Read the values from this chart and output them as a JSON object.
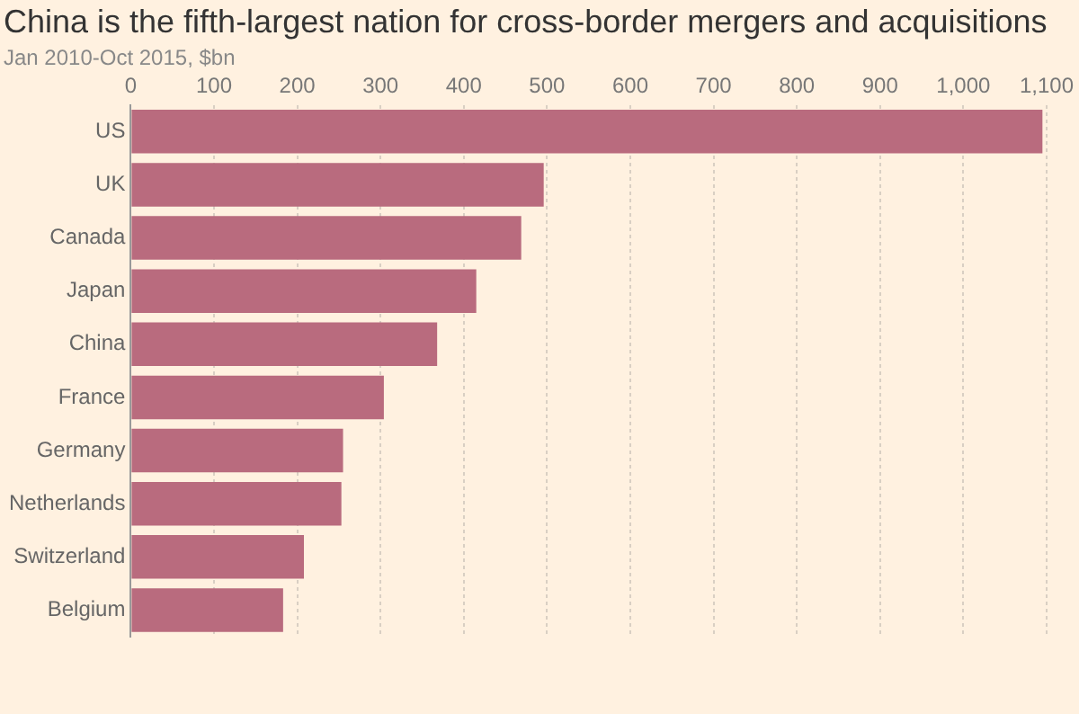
{
  "chart_data": {
    "type": "bar",
    "orientation": "horizontal",
    "title": "China is the fifth-largest nation for cross-border mergers and acquisitions",
    "subtitle": "Jan 2010-Oct 2015, $bn",
    "categories": [
      "US",
      "UK",
      "Canada",
      "Japan",
      "China",
      "France",
      "Germany",
      "Netherlands",
      "Switzerland",
      "Belgium"
    ],
    "values": [
      1095,
      496,
      469,
      415,
      368,
      304,
      255,
      253,
      208,
      183
    ],
    "color": "#b96b7e",
    "xlim": [
      0,
      1100
    ],
    "xticks": [
      0,
      100,
      200,
      300,
      400,
      500,
      600,
      700,
      800,
      900,
      {
        "value": 1000,
        "label": "1,000"
      },
      {
        "value": 1100,
        "label": "1,100"
      }
    ],
    "grid": "x",
    "legend": false
  }
}
